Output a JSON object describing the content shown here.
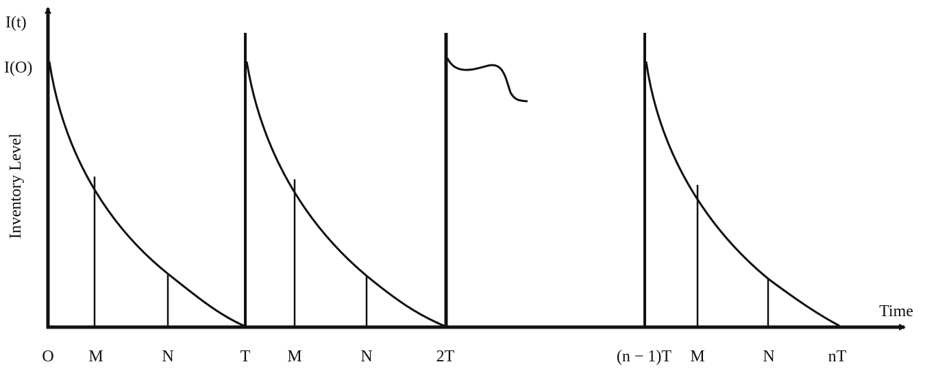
{
  "axes": {
    "y_top_label": "I(t)",
    "y_start_label": "I(O)",
    "y_title": "Inventory Level",
    "x_title": "Time"
  },
  "x_labels": [
    "O",
    "M",
    "N",
    "T",
    "M",
    "N",
    "2T",
    "(n − 1)T",
    "M",
    "N",
    "nT"
  ]
}
